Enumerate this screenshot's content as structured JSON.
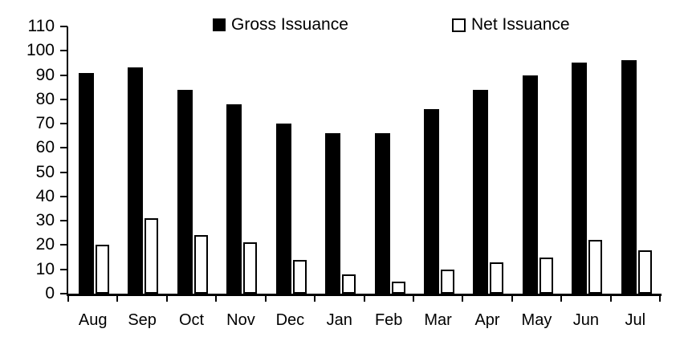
{
  "legend": [
    {
      "label": "Gross Issuance",
      "swatch": "filled-black",
      "color": "#000000"
    },
    {
      "label": "Net Issuance",
      "swatch": "outlined-white",
      "color": "#ffffff"
    }
  ],
  "chart_data": {
    "type": "bar",
    "categories": [
      "Aug",
      "Sep",
      "Oct",
      "Nov",
      "Dec",
      "Jan",
      "Feb",
      "Mar",
      "Apr",
      "May",
      "Jun",
      "Jul"
    ],
    "series": [
      {
        "name": "Gross Issuance",
        "values": [
          91,
          93,
          84,
          78,
          70,
          66,
          66,
          76,
          84,
          90,
          95,
          96
        ],
        "fill": "#000000",
        "border": "#000000"
      },
      {
        "name": "Net Issuance",
        "values": [
          20,
          31,
          24,
          21,
          14,
          8,
          5,
          10,
          13,
          15,
          22,
          18
        ],
        "fill": "#ffffff",
        "border": "#000000"
      }
    ],
    "title": "",
    "xlabel": "",
    "ylabel": "",
    "ylim": [
      0,
      110
    ],
    "yticks": [
      0,
      10,
      20,
      30,
      40,
      50,
      60,
      70,
      80,
      90,
      100,
      110
    ],
    "grid": false,
    "legend_position": "top",
    "colors": {
      "axis": "#000000",
      "text": "#000000",
      "background": "#ffffff"
    }
  }
}
